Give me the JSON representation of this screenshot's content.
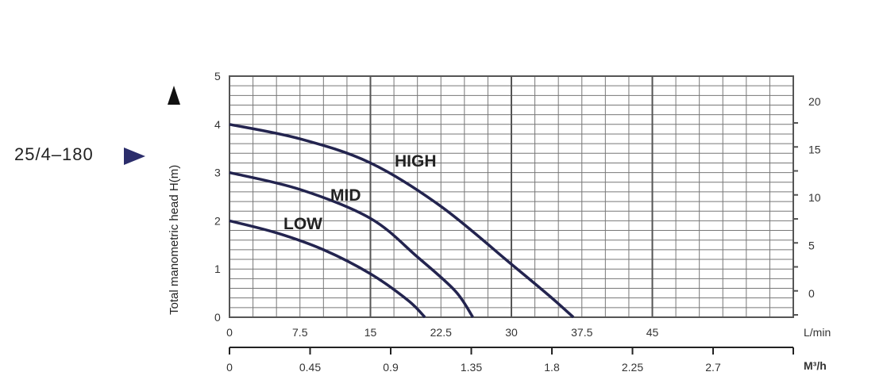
{
  "model": {
    "label": "25/4–180",
    "arrow_color": "#2b2d6b"
  },
  "chart_data": {
    "type": "line",
    "ylabel": "Total manometric head H(m)",
    "ylim": [
      0,
      5
    ],
    "y_ticks": [
      "0",
      "1",
      "2",
      "3",
      "4",
      "5"
    ],
    "x_flow_unit": "L/min",
    "x_flow_lim": [
      0,
      60
    ],
    "x_flow_ticks": [
      {
        "v": 0,
        "label": "0"
      },
      {
        "v": 7.5,
        "label": "7.5"
      },
      {
        "v": 15,
        "label": "15"
      },
      {
        "v": 22.5,
        "label": "22.5"
      },
      {
        "v": 30,
        "label": "30"
      },
      {
        "v": 37.5,
        "label": "37.5"
      },
      {
        "v": 45,
        "label": "45"
      }
    ],
    "x_m3h_unit": "M³/h",
    "x_m3h_ticks": [
      "0",
      "0.45",
      "0.9",
      "1.35",
      "1.8",
      "2.25",
      "2.7"
    ],
    "right_ticks": [
      {
        "v": 0,
        "label": "0"
      },
      {
        "v": 5,
        "label": "5"
      },
      {
        "v": 10,
        "label": "10"
      },
      {
        "v": 15,
        "label": "15"
      },
      {
        "v": 20,
        "label": "20"
      }
    ],
    "grid": true,
    "curve_color": "#23244f",
    "series": [
      {
        "name": "HIGH",
        "x": [
          0,
          7.5,
          15,
          22.5,
          30,
          34,
          36.6
        ],
        "y": [
          4.0,
          3.7,
          3.2,
          2.3,
          1.1,
          0.45,
          0
        ]
      },
      {
        "name": "MID",
        "x": [
          0,
          7.5,
          15,
          20,
          24,
          25.9
        ],
        "y": [
          3.0,
          2.65,
          2.05,
          1.25,
          0.55,
          0
        ]
      },
      {
        "name": "LOW",
        "x": [
          0,
          5,
          10,
          15,
          19,
          20.8
        ],
        "y": [
          2.0,
          1.75,
          1.4,
          0.9,
          0.35,
          0
        ]
      }
    ]
  }
}
